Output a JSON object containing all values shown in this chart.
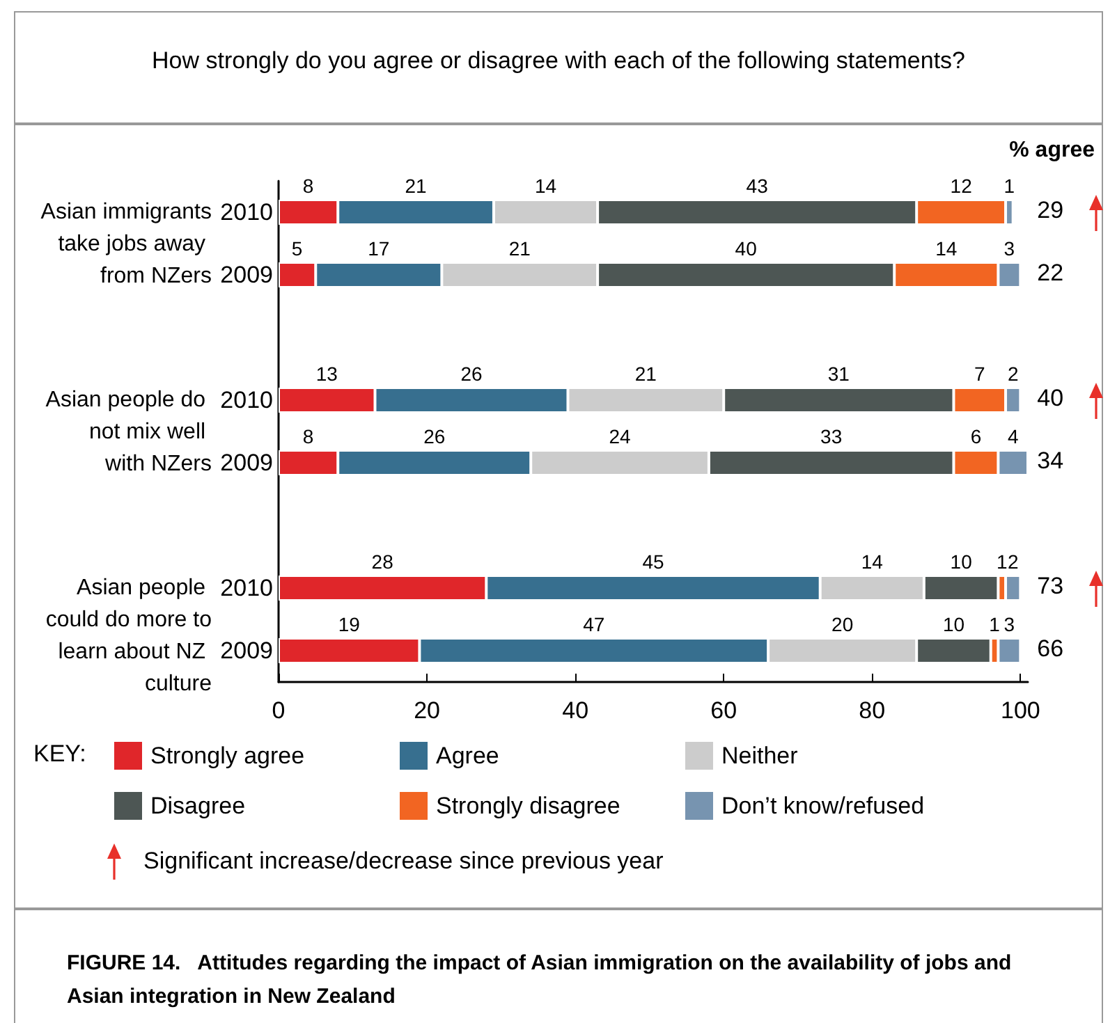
{
  "chart_data": {
    "type": "bar",
    "orientation": "horizontal",
    "stacked": true,
    "title": "How strongly do you agree or disagree with each of the following statements?",
    "annotations": [
      "% agree",
      "KEY:",
      "Significant increase/decrease since previous year",
      "FIGURE 14.   Attitudes regarding the impact of Asian immigration on the availability of jobs and Asian integration in New Zealand",
      "Asian immigrants take jobs away from NZers",
      "Asian people do not mix well with NZers",
      "Asian people could do more to learn about NZ culture",
      "29",
      "22",
      "40",
      "34",
      "73",
      "66"
    ],
    "categories": [
      "2010",
      "2009",
      null,
      "2010",
      "2009",
      null,
      "2010",
      "2009"
    ],
    "series": [
      {
        "name": "Strongly agree",
        "color": "#e0262a",
        "values": [
          8,
          5,
          null,
          13,
          8,
          null,
          28,
          19
        ]
      },
      {
        "name": "Agree",
        "color": "#376f8f",
        "values": [
          21,
          17,
          null,
          26,
          26,
          null,
          45,
          47
        ]
      },
      {
        "name": "Neither",
        "color": "#cccccc",
        "values": [
          14,
          21,
          null,
          21,
          24,
          null,
          14,
          20
        ]
      },
      {
        "name": "Disagree",
        "color": "#4d5654",
        "values": [
          43,
          40,
          null,
          31,
          33,
          null,
          10,
          10
        ]
      },
      {
        "name": "Strongly disagree",
        "color": "#f26522",
        "values": [
          12,
          14,
          null,
          7,
          6,
          null,
          1,
          1
        ]
      },
      {
        "name": "Don’t know/refused",
        "color": "#7794b0",
        "values": [
          1,
          3,
          null,
          2,
          4,
          null,
          2,
          3
        ]
      }
    ],
    "data_labels": true,
    "xlim": [
      0,
      101
    ],
    "xticks": [
      0,
      20,
      40,
      60,
      80,
      100
    ],
    "grid": false,
    "legend": "bottom"
  }
}
